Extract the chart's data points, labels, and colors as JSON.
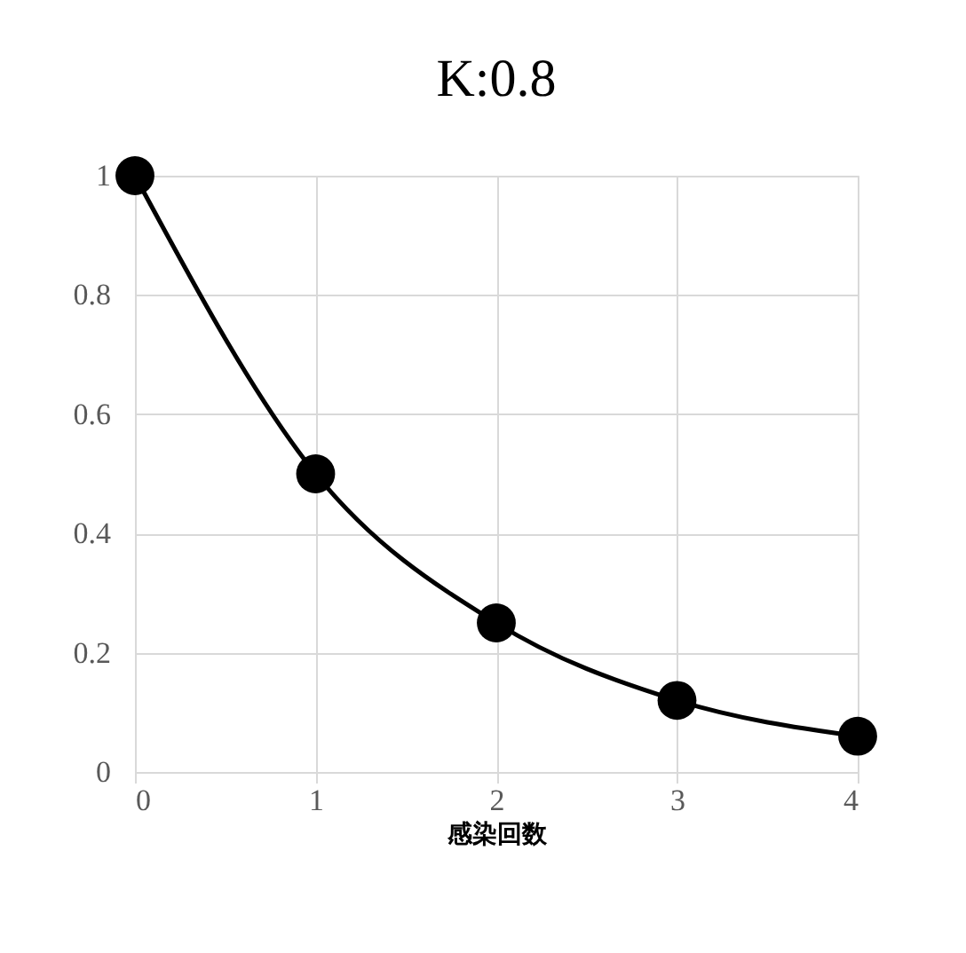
{
  "chart_data": {
    "type": "line",
    "title": "K:0.8",
    "xlabel": "感染回数",
    "x": [
      0,
      1,
      2,
      3,
      4
    ],
    "series": [
      {
        "color": "#000000",
        "values": [
          1,
          0.5,
          0.25,
          0.12,
          0.06
        ]
      }
    ],
    "xlim": [
      0,
      4
    ],
    "xticks": [
      0,
      1,
      2,
      3,
      4
    ],
    "ylim": [
      0,
      1
    ],
    "yticks": [
      0,
      0.2,
      0.4,
      0.6,
      0.8,
      1
    ],
    "grid": true,
    "marker": "circle",
    "line_style": "solid"
  }
}
